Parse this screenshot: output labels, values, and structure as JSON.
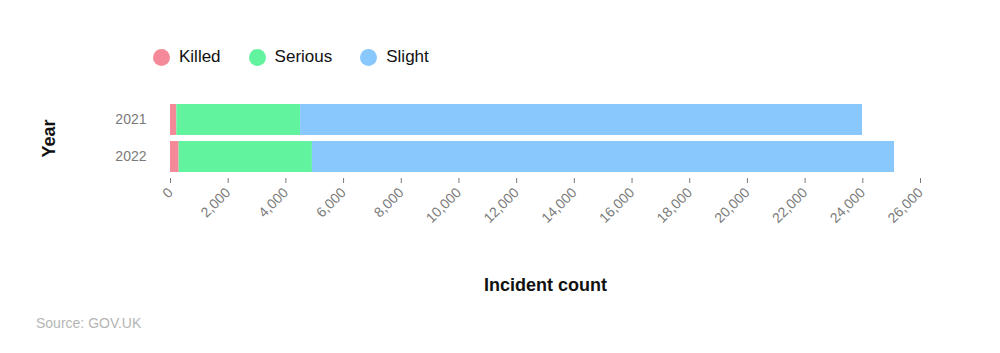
{
  "chart_data": {
    "type": "bar",
    "orientation": "horizontal",
    "stacked": true,
    "legend": "top-left",
    "grid": false,
    "caption": "Source: GOV.UK",
    "x_label": "Incident count",
    "y_label": "Year",
    "categories": [
      "2021",
      "2022"
    ],
    "series": [
      {
        "name": "Killed",
        "color": "#f4899a",
        "values": [
          220,
          300
        ]
      },
      {
        "name": "Serious",
        "color": "#62f39e",
        "values": [
          4290,
          4620
        ]
      },
      {
        "name": "Slight",
        "color": "#88c8fc",
        "values": [
          19480,
          20180
        ]
      }
    ],
    "xlim": [
      0,
      26000
    ],
    "xticks": [
      0,
      {
        "value": 2000,
        "label": "2,000"
      },
      {
        "value": 4000,
        "label": "4,000"
      },
      {
        "value": 6000,
        "label": "6,000"
      },
      {
        "value": 8000,
        "label": "8,000"
      },
      {
        "value": 10000,
        "label": "10,000"
      },
      {
        "value": 12000,
        "label": "12,000"
      },
      {
        "value": 14000,
        "label": "14,000"
      },
      {
        "value": 16000,
        "label": "16,000"
      },
      {
        "value": 18000,
        "label": "18,000"
      },
      {
        "value": 20000,
        "label": "20,000"
      },
      {
        "value": 22000,
        "label": "22,000"
      },
      {
        "value": 24000,
        "label": "24,000"
      },
      {
        "value": 26000,
        "label": "26,000"
      }
    ]
  }
}
